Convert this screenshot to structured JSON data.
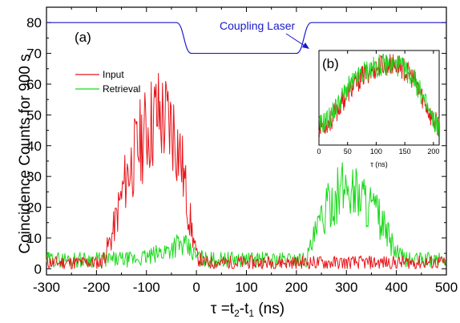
{
  "chart_data": {
    "type": "line",
    "xlabel_base": "τ =t",
    "xlabel_sub1": "2",
    "xlabel_mid": "-t",
    "xlabel_sub2": "1",
    "xlabel_unit": " (ns)",
    "ylabel": "Coincidence Counts for 900 s",
    "xlim": [
      -300,
      500
    ],
    "ylim": [
      -2,
      85
    ],
    "xticks": [
      "-300",
      "-200",
      "-100",
      "0",
      "100",
      "200",
      "300",
      "400",
      "500"
    ],
    "yticks": [
      "0",
      "10",
      "20",
      "30",
      "40",
      "50",
      "60",
      "70",
      "80"
    ],
    "panel_label": "(a)",
    "legend": [
      {
        "name": "Input",
        "color": "#e8141a"
      },
      {
        "name": "Retrieval",
        "color": "#19d919"
      }
    ],
    "annotation": "Coupling Laser",
    "coupling_laser": {
      "color": "#1a1acc",
      "x": [
        -300,
        -40,
        -10,
        200,
        230,
        500
      ],
      "y": [
        80,
        80,
        70,
        70,
        80,
        80
      ]
    },
    "series": [
      {
        "name": "Input",
        "color": "#e8141a",
        "profile": {
          "x": [
            -300,
            -190,
            -170,
            -140,
            -110,
            -80,
            -60,
            -45,
            -30,
            -15,
            0,
            15,
            500
          ],
          "y": [
            2,
            2,
            10,
            30,
            42,
            50,
            48,
            45,
            35,
            18,
            4,
            2,
            2
          ]
        },
        "peak_max": 67
      },
      {
        "name": "Retrieval",
        "color": "#19d919",
        "profile": {
          "x": [
            -300,
            -130,
            -90,
            -60,
            -40,
            -20,
            0,
            20,
            220,
            245,
            270,
            300,
            330,
            360,
            385,
            400,
            420,
            500
          ],
          "y": [
            3,
            3,
            4,
            6,
            8,
            7,
            4,
            3,
            3,
            14,
            22,
            27,
            24,
            18,
            10,
            5,
            3,
            3
          ]
        },
        "peak_max": 38
      }
    ],
    "inset": {
      "label": "(b)",
      "xlabel": "τ  (ns)",
      "xticks": [
        "0",
        "50",
        "100",
        "150",
        "200"
      ],
      "xlim": [
        0,
        210
      ],
      "ylim": [
        0,
        1
      ],
      "series": [
        {
          "name": "Input",
          "color": "#e8141a",
          "profile": {
            "x": [
              0,
              20,
              50,
              80,
              110,
              140,
              165,
              185,
              200,
              210
            ],
            "y": [
              0.2,
              0.25,
              0.55,
              0.75,
              0.85,
              0.85,
              0.7,
              0.45,
              0.25,
              0.2
            ]
          }
        },
        {
          "name": "Retrieval",
          "color": "#19d919",
          "profile": {
            "x": [
              0,
              20,
              50,
              80,
              110,
              140,
              165,
              185,
              200,
              210
            ],
            "y": [
              0.2,
              0.3,
              0.6,
              0.78,
              0.85,
              0.84,
              0.72,
              0.45,
              0.25,
              0.2
            ]
          }
        }
      ]
    }
  }
}
